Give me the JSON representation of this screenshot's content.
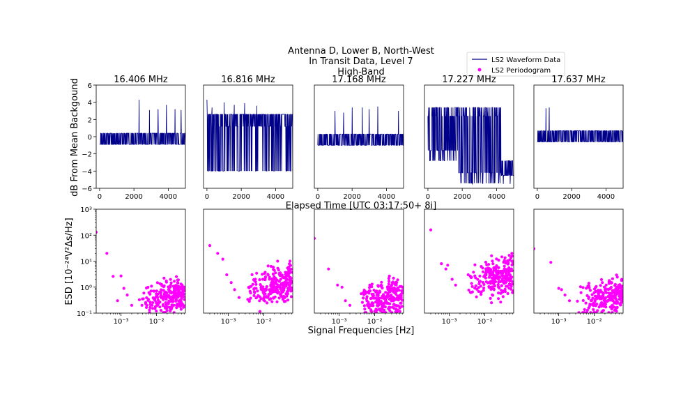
{
  "figure": {
    "title_lines": [
      "Antenna D, Lower B, North-West",
      "In Transit Data, Level 7",
      "High-Band"
    ],
    "waveform_xlabel": "Elapsed Time [UTC 03:17:50+ 8i]",
    "waveform_ylabel": "dB From Mean Backgound",
    "periodogram_xlabel": "Signal Frequencies [Hz]",
    "periodogram_ylabel": "ESD [10⁻²⁴V²Δs/Hz]",
    "legend": [
      {
        "label": "LS2 Waveform Data",
        "color": "#00008b",
        "kind": "line"
      },
      {
        "label": "LS2 Periodogram",
        "color": "#ff00ff",
        "kind": "marker"
      }
    ]
  },
  "chart_data": [
    {
      "type": "line",
      "panel": "waveform",
      "title": "16.406 MHz",
      "xlim": [
        -200,
        5000
      ],
      "ylim": [
        -6,
        6
      ],
      "xticks": [
        0,
        2000,
        4000
      ],
      "yticks": [
        -6,
        -4,
        -2,
        0,
        2,
        4,
        6
      ],
      "x_range": [
        0,
        5000
      ],
      "levels": [
        -0.9,
        0.4
      ],
      "spikes": [
        [
          2300,
          4.3
        ],
        [
          2900,
          3.1
        ],
        [
          3400,
          3.2
        ],
        [
          3900,
          3.7
        ],
        [
          4400,
          3.2
        ],
        [
          4750,
          3.1
        ]
      ],
      "dips": [],
      "seed": 11,
      "color": "#00008b"
    },
    {
      "type": "line",
      "panel": "waveform",
      "title": "16.816 MHz",
      "xlim": [
        -200,
        5000
      ],
      "ylim": [
        -6,
        6
      ],
      "xticks": [
        0,
        2000,
        4000
      ],
      "yticks": [],
      "x_range": [
        0,
        5000
      ],
      "levels": [
        -4,
        2.6
      ],
      "spikes": [
        [
          0,
          4.3
        ],
        [
          300,
          3.4
        ],
        [
          1000,
          4.0
        ],
        [
          1600,
          3.7
        ],
        [
          2200,
          3.9
        ],
        [
          2900,
          3.6
        ]
      ],
      "dips": [],
      "seed": 23,
      "color": "#00008b"
    },
    {
      "type": "line",
      "panel": "waveform",
      "title": "17.168 MHz",
      "xlim": [
        -200,
        5000
      ],
      "ylim": [
        -6,
        6
      ],
      "xticks": [
        0,
        2000,
        4000
      ],
      "yticks": [],
      "x_range": [
        0,
        5000
      ],
      "levels": [
        -1.0,
        0.3
      ],
      "spikes": [
        [
          1000,
          3.0
        ],
        [
          1500,
          2.8
        ],
        [
          2000,
          3.4
        ],
        [
          2600,
          3.4
        ],
        [
          3000,
          3.2
        ],
        [
          3500,
          3.5
        ],
        [
          4700,
          3.0
        ]
      ],
      "dips": [],
      "seed": 37,
      "color": "#00008b"
    },
    {
      "type": "line",
      "panel": "waveform",
      "title": "17.227 MHz",
      "xlim": [
        -200,
        5000
      ],
      "ylim": [
        -6,
        6
      ],
      "xticks": [
        0,
        2000,
        4000
      ],
      "yticks": [],
      "x_range": [
        0,
        5000
      ],
      "levels": [
        -1.5,
        3.4
      ],
      "spikes": [],
      "dips": [
        [
          2600,
          -5.5
        ],
        [
          3200,
          -5.5
        ],
        [
          3800,
          -5.4
        ],
        [
          4400,
          -5.5
        ],
        [
          4800,
          -5.5
        ]
      ],
      "seed": 51,
      "color": "#00008b"
    },
    {
      "type": "line",
      "panel": "waveform",
      "title": "17.637 MHz",
      "xlim": [
        -200,
        5000
      ],
      "ylim": [
        -6,
        6
      ],
      "xticks": [
        0,
        2000,
        4000
      ],
      "yticks": [],
      "x_range": [
        0,
        5000
      ],
      "levels": [
        -0.6,
        0.7
      ],
      "spikes": [
        [
          500,
          3.3
        ],
        [
          700,
          3.4
        ]
      ],
      "dips": [],
      "seed": 67,
      "color": "#00008b"
    },
    {
      "type": "scatter",
      "panel": "periodogram",
      "title": "",
      "xscale": "log",
      "yscale": "log",
      "xlim": [
        0.0002,
        0.065
      ],
      "ylim": [
        0.1,
        1000
      ],
      "xticks": [
        0.001,
        0.01
      ],
      "xticklabels": [
        "10⁻³",
        "10⁻²"
      ],
      "yticks": [
        0.1,
        1,
        10,
        100,
        1000
      ],
      "yticklabels": [
        "10⁻¹",
        "10⁰",
        "10¹",
        "10²",
        "10³"
      ],
      "lead_points": [
        [
          0.0002,
          130
        ],
        [
          0.0004,
          20
        ],
        [
          0.0006,
          2.6
        ],
        [
          0.0008,
          0.3
        ],
        [
          0.001,
          2.7
        ],
        [
          0.0012,
          0.9
        ],
        [
          0.0015,
          0.5
        ],
        [
          0.002,
          0.2
        ]
      ],
      "cloud": {
        "n": 240,
        "log_mu": -0.4,
        "log_sd": 0.3,
        "ymax": 3
      },
      "seed": 101,
      "color": "#ff00ff"
    },
    {
      "type": "scatter",
      "panel": "periodogram",
      "title": "",
      "xscale": "log",
      "yscale": "log",
      "xlim": [
        0.0002,
        0.065
      ],
      "ylim": [
        0.1,
        1000
      ],
      "xticks": [
        0.001,
        0.01
      ],
      "xticklabels": [
        "10⁻³",
        "10⁻²"
      ],
      "yticks": [],
      "yticklabels": [],
      "lead_points": [
        [
          0.0003,
          40
        ],
        [
          0.0005,
          20
        ],
        [
          0.0007,
          12
        ],
        [
          0.0009,
          3
        ],
        [
          0.0012,
          1.5
        ],
        [
          0.0015,
          0.8
        ],
        [
          0.002,
          0.4
        ]
      ],
      "cloud": {
        "n": 240,
        "log_mu": 0.05,
        "log_sd": 0.35,
        "ymax": 10
      },
      "seed": 211,
      "color": "#ff00ff"
    },
    {
      "type": "scatter",
      "panel": "periodogram",
      "title": "",
      "xscale": "log",
      "yscale": "log",
      "xlim": [
        0.0002,
        0.065
      ],
      "ylim": [
        0.1,
        1000
      ],
      "xticks": [
        0.001,
        0.01
      ],
      "xticklabels": [
        "10⁻³",
        "10⁻²"
      ],
      "yticks": [],
      "yticklabels": [],
      "lead_points": [
        [
          0.0002,
          75
        ],
        [
          0.0005,
          5
        ],
        [
          0.0009,
          1.2
        ],
        [
          0.0012,
          1.0
        ],
        [
          0.0015,
          0.3
        ],
        [
          0.002,
          0.2
        ]
      ],
      "cloud": {
        "n": 240,
        "log_mu": -0.45,
        "log_sd": 0.32,
        "ymax": 5
      },
      "seed": 307,
      "color": "#ff00ff"
    },
    {
      "type": "scatter",
      "panel": "periodogram",
      "title": "",
      "xscale": "log",
      "yscale": "log",
      "xlim": [
        0.0002,
        0.065
      ],
      "ylim": [
        0.1,
        1000
      ],
      "xticks": [
        0.001,
        0.01
      ],
      "xticklabels": [
        "10⁻³",
        "10⁻²"
      ],
      "yticks": [],
      "yticklabels": [],
      "lead_points": [
        [
          0.0003,
          160
        ],
        [
          0.0006,
          8
        ],
        [
          0.0008,
          5
        ],
        [
          0.0009,
          7
        ],
        [
          0.0012,
          2
        ],
        [
          0.0015,
          1.2
        ]
      ],
      "cloud": {
        "n": 240,
        "log_mu": 0.3,
        "log_sd": 0.35,
        "ymax": 20
      },
      "seed": 401,
      "color": "#ff00ff"
    },
    {
      "type": "scatter",
      "panel": "periodogram",
      "title": "",
      "xscale": "log",
      "yscale": "log",
      "xlim": [
        0.0002,
        0.065
      ],
      "ylim": [
        0.1,
        1000
      ],
      "xticks": [
        0.001,
        0.01
      ],
      "xticklabels": [
        "10⁻³",
        "10⁻²"
      ],
      "yticks": [],
      "yticklabels": [],
      "lead_points": [
        [
          0.0002,
          30
        ],
        [
          0.0006,
          9
        ],
        [
          0.001,
          0.9
        ],
        [
          0.0012,
          0.8
        ],
        [
          0.0015,
          0.5
        ],
        [
          0.002,
          0.3
        ]
      ],
      "cloud": {
        "n": 240,
        "log_mu": -0.45,
        "log_sd": 0.3,
        "ymax": 3
      },
      "seed": 503,
      "color": "#ff00ff"
    }
  ]
}
